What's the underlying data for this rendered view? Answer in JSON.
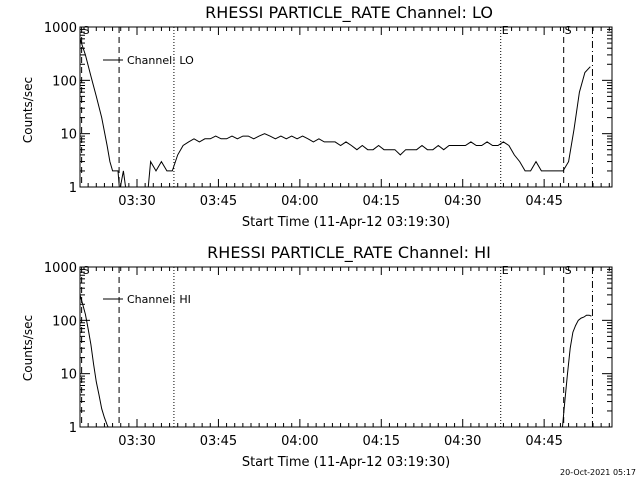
{
  "footer_timestamp": "20-Oct-2021 05:17",
  "chart_data": [
    {
      "type": "line",
      "title": "RHESSI PARTICLE_RATE Channel: LO",
      "xlabel": "Start Time (11-Apr-12 03:19:30)",
      "ylabel": "Counts/sec",
      "yscale": "log",
      "ylim": [
        1,
        1000
      ],
      "y_ticks": [
        "1",
        "10",
        "100",
        "1000"
      ],
      "x_ticks": [
        "03:30",
        "03:45",
        "04:00",
        "04:15",
        "04:30",
        "04:45"
      ],
      "x_tick_minutes": [
        10.5,
        25.5,
        40.5,
        55.5,
        70.5,
        85.5
      ],
      "xlim_minutes": [
        0,
        98
      ],
      "legend": "Channel: LO",
      "grid": false,
      "markers": [
        {
          "label": "S",
          "minute": 0.3,
          "style": "dashed"
        },
        {
          "label": "",
          "minute": 7.2,
          "style": "dashed"
        },
        {
          "label": "",
          "minute": 17.3,
          "style": "dotted"
        },
        {
          "label": "E",
          "minute": 77.5,
          "style": "dotted"
        },
        {
          "label": "S",
          "minute": 89.1,
          "style": "dashed"
        },
        {
          "label": "",
          "minute": 94.4,
          "style": "dashdot"
        }
      ],
      "series": [
        {
          "name": "Channel: LO",
          "x": [
            0,
            1,
            2,
            3,
            4,
            5,
            5.5,
            6,
            6.5,
            7,
            7.3,
            8,
            8.5,
            9,
            10,
            11,
            12,
            12.5,
            13,
            14,
            15,
            16,
            16.5,
            17,
            18,
            19,
            20,
            21,
            22,
            23,
            24,
            25,
            26,
            27,
            28,
            29,
            30,
            31,
            32,
            33,
            34,
            35,
            36,
            37,
            38,
            39,
            40,
            41,
            42,
            43,
            44,
            45,
            46,
            47,
            48,
            49,
            50,
            51,
            52,
            53,
            54,
            55,
            56,
            57,
            58,
            59,
            60,
            61,
            62,
            63,
            64,
            65,
            66,
            67,
            68,
            69,
            70,
            71,
            72,
            73,
            74,
            75,
            76,
            77,
            78,
            79,
            80,
            81,
            82,
            83,
            84,
            85,
            86,
            87,
            88,
            89,
            90,
            91,
            92,
            93,
            94
          ],
          "y": [
            600,
            300,
            120,
            50,
            20,
            6,
            3,
            2,
            2,
            2,
            1,
            2,
            1,
            1,
            1,
            1,
            1,
            1,
            3,
            2,
            3,
            2,
            2,
            2,
            4,
            6,
            7,
            8,
            7,
            8,
            8,
            9,
            8,
            8,
            9,
            8,
            9,
            9,
            8,
            9,
            10,
            9,
            8,
            9,
            8,
            9,
            8,
            9,
            8,
            7,
            8,
            7,
            7,
            7,
            6,
            7,
            6,
            5,
            6,
            5,
            5,
            6,
            5,
            5,
            5,
            4,
            5,
            5,
            5,
            6,
            5,
            5,
            6,
            5,
            6,
            6,
            6,
            6,
            7,
            6,
            6,
            7,
            6,
            6,
            7,
            6,
            4,
            3,
            2,
            2,
            3,
            2,
            2,
            2,
            2,
            2,
            3,
            12,
            60,
            140,
            180
          ]
        }
      ]
    },
    {
      "type": "line",
      "title": "RHESSI PARTICLE_RATE Channel: HI",
      "xlabel": "Start Time (11-Apr-12 03:19:30)",
      "ylabel": "Counts/sec",
      "yscale": "log",
      "ylim": [
        1,
        1000
      ],
      "y_ticks": [
        "1",
        "10",
        "100",
        "1000"
      ],
      "x_ticks": [
        "03:30",
        "03:45",
        "04:00",
        "04:15",
        "04:30",
        "04:45"
      ],
      "x_tick_minutes": [
        10.5,
        25.5,
        40.5,
        55.5,
        70.5,
        85.5
      ],
      "xlim_minutes": [
        0,
        98
      ],
      "legend": "Channel: HI",
      "grid": false,
      "markers": [
        {
          "label": "S",
          "minute": 0.3,
          "style": "dashed"
        },
        {
          "label": "",
          "minute": 7.2,
          "style": "dashed"
        },
        {
          "label": "",
          "minute": 17.3,
          "style": "dotted"
        },
        {
          "label": "E",
          "minute": 77.5,
          "style": "dotted"
        },
        {
          "label": "S",
          "minute": 89.1,
          "style": "dashed"
        },
        {
          "label": "",
          "minute": 94.4,
          "style": "dashdot"
        }
      ],
      "series": [
        {
          "name": "Channel: HI",
          "x": [
            0,
            0.5,
            1,
            1.5,
            2,
            2.5,
            3,
            3.5,
            4,
            4.5,
            5,
            5.5,
            88.8,
            89.3,
            89.8,
            90.3,
            90.8,
            91.3,
            91.8,
            92.3,
            92.8,
            93.3,
            93.8,
            94.2
          ],
          "y": [
            300,
            200,
            130,
            70,
            35,
            15,
            7,
            4,
            2.2,
            1.5,
            1.1,
            1,
            1,
            3,
            10,
            30,
            60,
            80,
            100,
            110,
            115,
            125,
            125,
            120
          ]
        }
      ]
    }
  ]
}
